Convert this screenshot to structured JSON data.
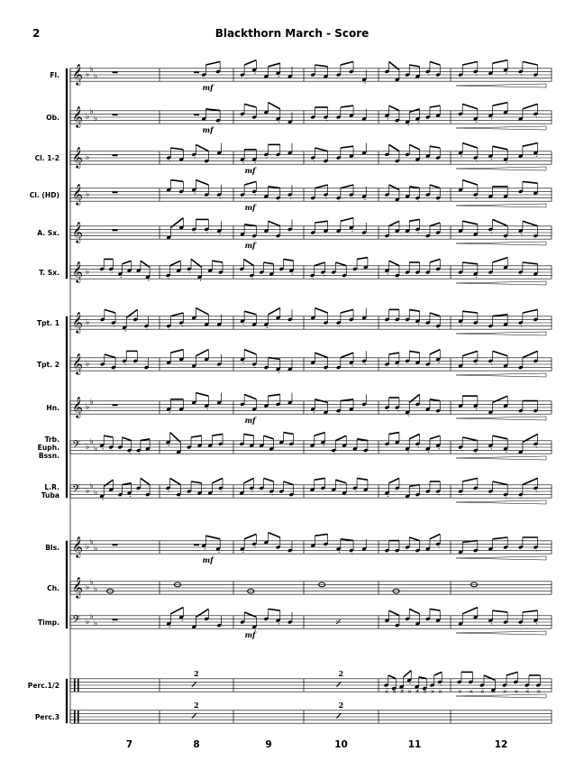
{
  "header": {
    "page_number": "2",
    "title": "Blackthorn March - Score"
  },
  "dynamics": {
    "mf": "mf"
  },
  "multirest": {
    "count": "2"
  },
  "instruments": [
    {
      "label": "Fl.",
      "clef": "treble",
      "key_flats": 3
    },
    {
      "label": "Ob.",
      "clef": "treble",
      "key_flats": 3
    },
    {
      "label": "Cl. 1-2",
      "clef": "treble",
      "key_flats": 1
    },
    {
      "label": "Cl. (HD)",
      "clef": "treble",
      "key_flats": 1
    },
    {
      "label": "A. Sx.",
      "clef": "treble",
      "key_flats": 0
    },
    {
      "label": "T. Sx.",
      "clef": "treble",
      "key_flats": 1
    },
    {
      "label": "Tpt. 1",
      "clef": "treble",
      "key_flats": 1
    },
    {
      "label": "Tpt. 2",
      "clef": "treble",
      "key_flats": 1
    },
    {
      "label": "Hn.",
      "clef": "treble",
      "key_flats": 2
    },
    {
      "label": "Trb.\nEuph.\nBssn.",
      "clef": "bass",
      "key_flats": 3
    },
    {
      "label": "L.R.\nTuba",
      "clef": "bass",
      "key_flats": 3
    },
    {
      "label": "Bls.",
      "clef": "treble",
      "key_flats": 3
    },
    {
      "label": "Ch.",
      "clef": "treble",
      "key_flats": 3
    },
    {
      "label": "Timp.",
      "clef": "bass",
      "key_flats": 3
    },
    {
      "label": "Perc.1/2",
      "clef": "percussion",
      "key_flats": 0
    },
    {
      "label": "Perc.3",
      "clef": "percussion",
      "key_flats": 0
    }
  ],
  "measure_numbers": [
    "7",
    "8",
    "9",
    "10",
    "11",
    "12"
  ]
}
